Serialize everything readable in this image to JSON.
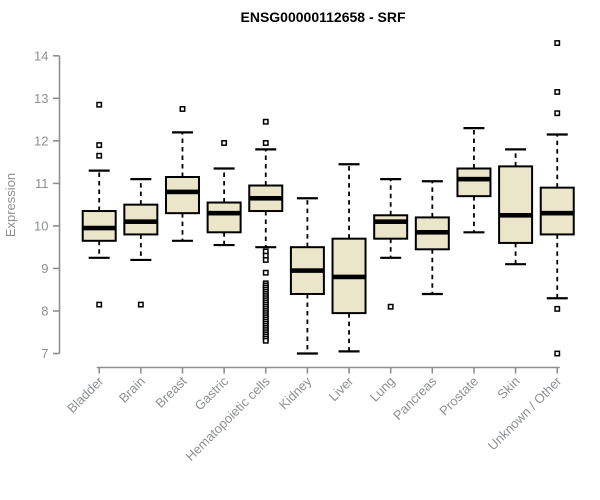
{
  "chart_data": {
    "type": "boxplot",
    "title": "ENSG00000112658 - SRF",
    "xlabel": "",
    "ylabel": "Expression",
    "ylim": [
      6.8,
      14.4
    ],
    "yticks": [
      7,
      8,
      9,
      10,
      11,
      12,
      13,
      14
    ],
    "grid": false,
    "legend": "none",
    "categories": [
      "Bladder",
      "Brain",
      "Breast",
      "Gastric",
      "Hematopoietic cells",
      "Kidney",
      "Liver",
      "Lung",
      "Pancreas",
      "Prostate",
      "Skin",
      "Unknown / Other"
    ],
    "series": [
      {
        "category": "Bladder",
        "low": 9.25,
        "q1": 9.65,
        "median": 9.95,
        "q3": 10.35,
        "high": 11.3,
        "outliers": [
          12.85,
          11.9,
          11.65,
          8.15
        ]
      },
      {
        "category": "Brain",
        "low": 9.2,
        "q1": 9.8,
        "median": 10.1,
        "q3": 10.5,
        "high": 11.1,
        "outliers": [
          8.15
        ]
      },
      {
        "category": "Breast",
        "low": 9.65,
        "q1": 10.3,
        "median": 10.8,
        "q3": 11.15,
        "high": 12.2,
        "outliers": [
          12.75
        ]
      },
      {
        "category": "Gastric",
        "low": 9.55,
        "q1": 9.85,
        "median": 10.3,
        "q3": 10.55,
        "high": 11.35,
        "outliers": [
          11.95
        ]
      },
      {
        "category": "Hematopoietic cells",
        "low": 9.5,
        "q1": 10.35,
        "median": 10.65,
        "q3": 10.95,
        "high": 11.8,
        "outliers": [
          12.45,
          11.95,
          9.4,
          9.3,
          9.2,
          8.9,
          8.65,
          8.6,
          8.55,
          8.5,
          8.45,
          8.4,
          8.35,
          8.3,
          8.25,
          8.2,
          8.15,
          8.1,
          8.05,
          8.0,
          7.95,
          7.9,
          7.85,
          7.8,
          7.75,
          7.7,
          7.65,
          7.6,
          7.55,
          7.5,
          7.45,
          7.4,
          7.35,
          7.3
        ]
      },
      {
        "category": "Kidney",
        "low": 7.0,
        "q1": 8.4,
        "median": 8.95,
        "q3": 9.5,
        "high": 10.65,
        "outliers": []
      },
      {
        "category": "Liver",
        "low": 7.05,
        "q1": 7.95,
        "median": 8.8,
        "q3": 9.7,
        "high": 11.45,
        "outliers": []
      },
      {
        "category": "Lung",
        "low": 9.25,
        "q1": 9.7,
        "median": 10.1,
        "q3": 10.25,
        "high": 11.1,
        "outliers": [
          8.1
        ]
      },
      {
        "category": "Pancreas",
        "low": 8.4,
        "q1": 9.45,
        "median": 9.85,
        "q3": 10.2,
        "high": 11.05,
        "outliers": []
      },
      {
        "category": "Prostate",
        "low": 9.85,
        "q1": 10.7,
        "median": 11.1,
        "q3": 11.35,
        "high": 12.3,
        "outliers": []
      },
      {
        "category": "Skin",
        "low": 9.1,
        "q1": 9.6,
        "median": 10.25,
        "q3": 11.4,
        "high": 11.8,
        "outliers": []
      },
      {
        "category": "Unknown / Other",
        "low": 8.3,
        "q1": 9.8,
        "median": 10.3,
        "q3": 10.9,
        "high": 12.15,
        "outliers": [
          14.3,
          13.15,
          12.65,
          8.05,
          7.0
        ]
      }
    ],
    "colors": {
      "box_fill": "#EBE5C9",
      "box_border": "#000000",
      "median": "#000000",
      "whisker": "#000000",
      "outlier_stroke": "#000000",
      "outlier_fill": "#ffffff",
      "axis_line": "#8f8f8f",
      "tick_text": "#8d9093",
      "axis_label_text": "#8d9093",
      "title_text": "#000000",
      "background": "#ffffff"
    }
  }
}
